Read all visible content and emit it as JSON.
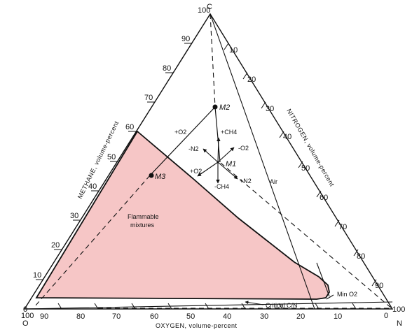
{
  "diagram": {
    "apex_labels": {
      "top": "C",
      "bottom_left": "O",
      "bottom_right": "N"
    },
    "axes": {
      "methane": "METHANE, volume-percent",
      "nitrogen": "NITROGEN, volume-percent",
      "oxygen": "OXYGEN, volume-percent"
    },
    "ticks": {
      "left": [
        "90",
        "80",
        "70",
        "60",
        "50",
        "40",
        "30",
        "20",
        "10"
      ],
      "right": [
        "10",
        "20",
        "30",
        "40",
        "50",
        "60",
        "70",
        "80",
        "90"
      ],
      "bottom": [
        "100",
        "90",
        "80",
        "70",
        "60",
        "50",
        "40",
        "30",
        "20",
        "10",
        "0"
      ],
      "apex_top": "100",
      "apex_left_100": "100",
      "apex_left_0": "0",
      "apex_right_0": "0",
      "apex_right_100": "100"
    },
    "points": {
      "m1": "M1",
      "m2": "M2",
      "m3": "M3"
    },
    "arrows": {
      "plus_o2_upper": "+O2",
      "plus_ch4": "+CH4",
      "minus_n2": "-N2",
      "minus_o2": "-O2",
      "plus_o2_lower": "+O2",
      "minus_ch4": "-CH4",
      "plus_n2": "+N2"
    },
    "labels": {
      "flammable": [
        "Flammable",
        "mixtures"
      ],
      "air": "Air",
      "min_o2": "Min O2",
      "critical_cn": "Critical C/N"
    },
    "colors": {
      "flammable_fill": "#f6c6c6",
      "line": "#111111"
    }
  }
}
